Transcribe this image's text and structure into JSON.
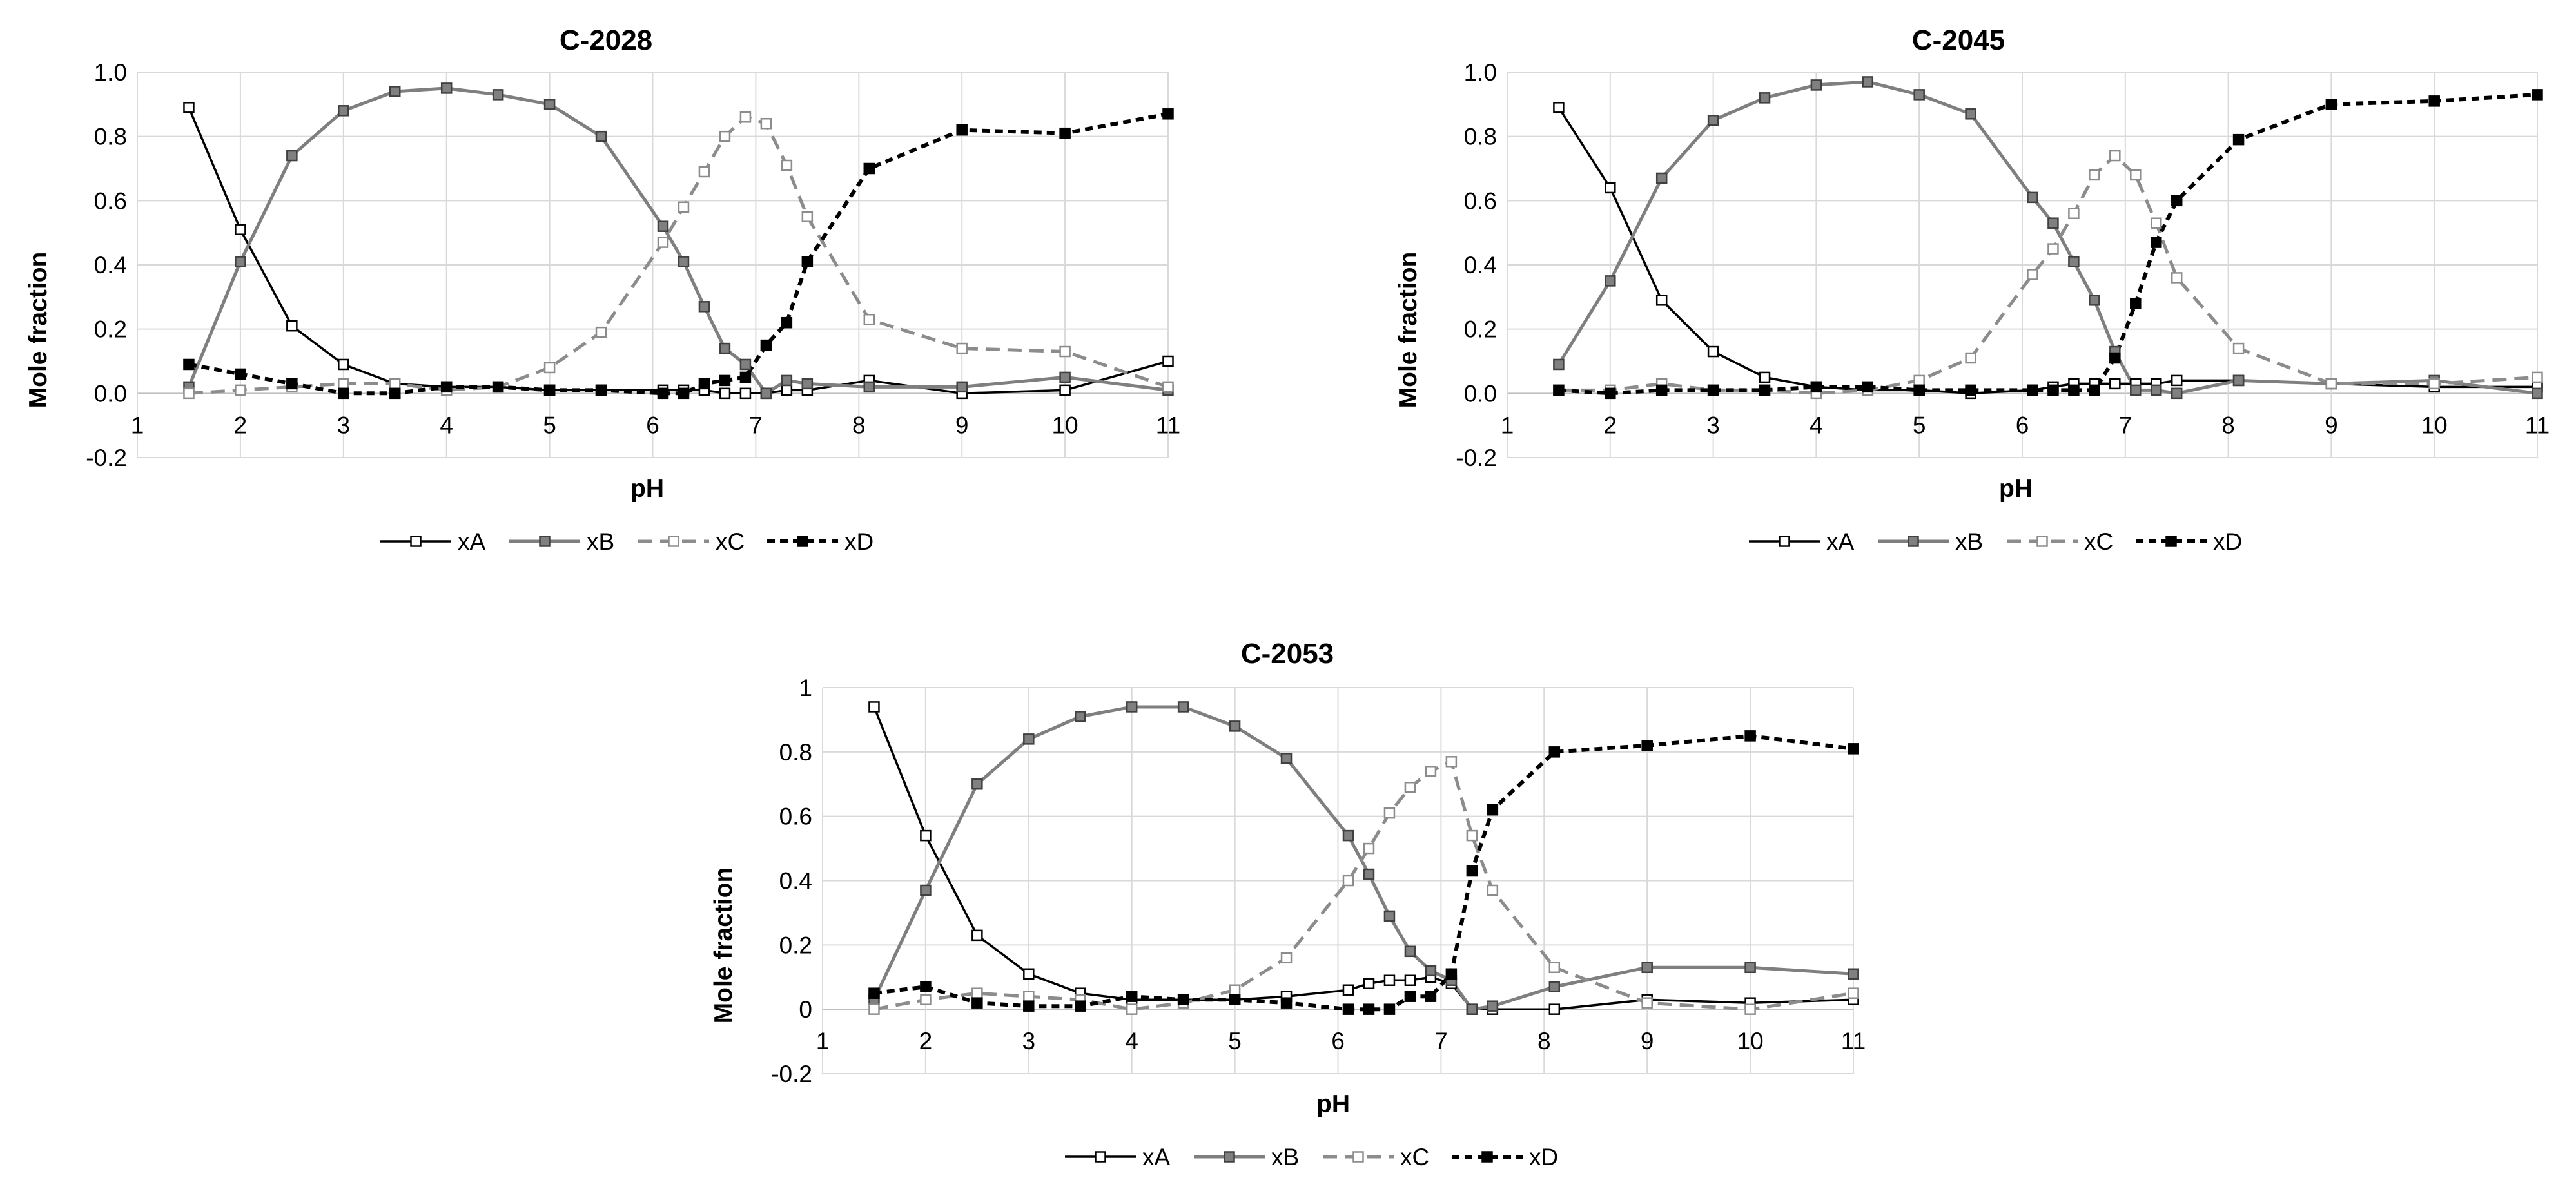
{
  "colors": {
    "xA": "#000000",
    "xB": "#7f7f7f",
    "xC": "#8c8c8c",
    "xD": "#000000",
    "grid": "#d9d9d9"
  },
  "chart_data": [
    {
      "type": "line",
      "title": "C-2028",
      "xlabel": "pH",
      "ylabel": "Mole fraction",
      "xlim": [
        1,
        11
      ],
      "ylim": [
        -0.2,
        1.0
      ],
      "xticks": [
        1,
        2,
        3,
        4,
        5,
        6,
        7,
        8,
        9,
        10,
        11
      ],
      "xtick_labels": [
        "1",
        "2",
        "3",
        "4",
        "5",
        "6",
        "7",
        "8",
        "9",
        "10",
        "11"
      ],
      "yticks": [
        -0.2,
        0,
        0.2,
        0.4,
        0.6,
        0.8,
        1.0
      ],
      "ytick_labels": [
        "-0.2",
        "0.0",
        "0.2",
        "0.4",
        "0.6",
        "0.8",
        "1.0"
      ],
      "grid": true,
      "legend_position": "bottom",
      "series": [
        {
          "name": "xA",
          "x": [
            1.5,
            2,
            2.5,
            3,
            3.5,
            4,
            4.5,
            5,
            5.5,
            6.1,
            6.3,
            6.5,
            6.7,
            6.9,
            7.1,
            7.3,
            7.5,
            8.1,
            9,
            10,
            11
          ],
          "values": [
            0.89,
            0.51,
            0.21,
            0.09,
            0.03,
            0.02,
            0.02,
            0.01,
            0.01,
            0.01,
            0.01,
            0.01,
            0.0,
            0.0,
            0.0,
            0.01,
            0.01,
            0.04,
            0.0,
            0.01,
            0.1
          ]
        },
        {
          "name": "xB",
          "x": [
            1.5,
            2,
            2.5,
            3,
            3.5,
            4,
            4.5,
            5,
            5.5,
            6.1,
            6.3,
            6.5,
            6.7,
            6.9,
            7.1,
            7.3,
            7.5,
            8.1,
            9,
            10,
            11
          ],
          "values": [
            0.02,
            0.41,
            0.74,
            0.88,
            0.94,
            0.95,
            0.93,
            0.9,
            0.8,
            0.52,
            0.41,
            0.27,
            0.14,
            0.09,
            0.0,
            0.04,
            0.03,
            0.02,
            0.02,
            0.05,
            0.01
          ]
        },
        {
          "name": "xC",
          "x": [
            1.5,
            2,
            2.5,
            3,
            3.5,
            4,
            4.5,
            5,
            5.5,
            6.1,
            6.3,
            6.5,
            6.7,
            6.9,
            7.1,
            7.3,
            7.5,
            8.1,
            9,
            10,
            11
          ],
          "values": [
            0.0,
            0.01,
            0.02,
            0.03,
            0.03,
            0.01,
            0.02,
            0.08,
            0.19,
            0.47,
            0.58,
            0.69,
            0.8,
            0.86,
            0.84,
            0.71,
            0.55,
            0.23,
            0.14,
            0.13,
            0.02
          ]
        },
        {
          "name": "xD",
          "x": [
            1.5,
            2,
            2.5,
            3,
            3.5,
            4,
            4.5,
            5,
            5.5,
            6.1,
            6.3,
            6.5,
            6.7,
            6.9,
            7.1,
            7.3,
            7.5,
            8.1,
            9,
            10,
            11
          ],
          "values": [
            0.09,
            0.06,
            0.03,
            0.0,
            0.0,
            0.02,
            0.02,
            0.01,
            0.01,
            0.0,
            0.0,
            0.03,
            0.04,
            0.05,
            0.15,
            0.22,
            0.41,
            0.7,
            0.82,
            0.81,
            0.87
          ]
        }
      ]
    },
    {
      "type": "line",
      "title": "C-2045",
      "xlabel": "pH",
      "ylabel": "Mole fraction",
      "xlim": [
        1,
        11
      ],
      "ylim": [
        -0.2,
        1.0
      ],
      "xticks": [
        1,
        2,
        3,
        4,
        5,
        6,
        7,
        8,
        9,
        10,
        11
      ],
      "xtick_labels": [
        "1",
        "2",
        "3",
        "4",
        "5",
        "6",
        "7",
        "8",
        "9",
        "10",
        "11"
      ],
      "yticks": [
        -0.2,
        0,
        0.2,
        0.4,
        0.6,
        0.8,
        1.0
      ],
      "ytick_labels": [
        "-0.2",
        "0.0",
        "0.2",
        "0.4",
        "0.6",
        "0.8",
        "1.0"
      ],
      "grid": true,
      "legend_position": "bottom",
      "series": [
        {
          "name": "xA",
          "x": [
            1.5,
            2,
            2.5,
            3,
            3.5,
            4,
            4.5,
            5,
            5.5,
            6.1,
            6.3,
            6.5,
            6.7,
            6.9,
            7.1,
            7.3,
            7.5,
            8.1,
            9,
            10,
            11
          ],
          "values": [
            0.89,
            0.64,
            0.29,
            0.13,
            0.05,
            0.02,
            0.01,
            0.01,
            0.0,
            0.01,
            0.02,
            0.03,
            0.03,
            0.03,
            0.03,
            0.03,
            0.04,
            0.04,
            0.03,
            0.02,
            0.02
          ]
        },
        {
          "name": "xB",
          "x": [
            1.5,
            2,
            2.5,
            3,
            3.5,
            4,
            4.5,
            5,
            5.5,
            6.1,
            6.3,
            6.5,
            6.7,
            6.9,
            7.1,
            7.3,
            7.5,
            8.1,
            9,
            10,
            11
          ],
          "values": [
            0.09,
            0.35,
            0.67,
            0.85,
            0.92,
            0.96,
            0.97,
            0.93,
            0.87,
            0.61,
            0.53,
            0.41,
            0.29,
            0.13,
            0.01,
            0.01,
            0.0,
            0.04,
            0.03,
            0.04,
            0.0
          ]
        },
        {
          "name": "xC",
          "x": [
            1.5,
            2,
            2.5,
            3,
            3.5,
            4,
            4.5,
            5,
            5.5,
            6.1,
            6.3,
            6.5,
            6.7,
            6.9,
            7.1,
            7.3,
            7.5,
            8.1,
            9,
            10,
            11
          ],
          "values": [
            0.01,
            0.01,
            0.03,
            0.01,
            0.01,
            0.0,
            0.01,
            0.04,
            0.11,
            0.37,
            0.45,
            0.56,
            0.68,
            0.74,
            0.68,
            0.53,
            0.36,
            0.14,
            0.03,
            0.03,
            0.05
          ]
        },
        {
          "name": "xD",
          "x": [
            1.5,
            2,
            2.5,
            3,
            3.5,
            4,
            4.5,
            5,
            5.5,
            6.1,
            6.3,
            6.5,
            6.7,
            6.9,
            7.1,
            7.3,
            7.5,
            8.1,
            9,
            10,
            11
          ],
          "values": [
            0.01,
            0.0,
            0.01,
            0.01,
            0.01,
            0.02,
            0.02,
            0.01,
            0.01,
            0.01,
            0.01,
            0.01,
            0.01,
            0.11,
            0.28,
            0.47,
            0.6,
            0.79,
            0.9,
            0.91,
            0.93
          ]
        }
      ]
    },
    {
      "type": "line",
      "title": "C-2053",
      "xlabel": "pH",
      "ylabel": "Mole fraction",
      "xlim": [
        1,
        11
      ],
      "ylim": [
        -0.2,
        1.0
      ],
      "xticks": [
        1,
        2,
        3,
        4,
        5,
        6,
        7,
        8,
        9,
        10,
        11
      ],
      "xtick_labels": [
        "1",
        "2",
        "3",
        "4",
        "5",
        "6",
        "7",
        "8",
        "9",
        "10",
        "11"
      ],
      "yticks": [
        -0.2,
        0,
        0.2,
        0.4,
        0.6,
        0.8,
        1.0
      ],
      "ytick_labels": [
        "-0.2",
        "0",
        "0.2",
        "0.4",
        "0.6",
        "0.8",
        "1"
      ],
      "grid": true,
      "legend_position": "bottom",
      "series": [
        {
          "name": "xA",
          "x": [
            1.5,
            2,
            2.5,
            3,
            3.5,
            4,
            4.5,
            5,
            5.5,
            6.1,
            6.3,
            6.5,
            6.7,
            6.9,
            7.1,
            7.3,
            7.5,
            8.1,
            9,
            10,
            11
          ],
          "values": [
            0.94,
            0.54,
            0.23,
            0.11,
            0.05,
            0.03,
            0.03,
            0.03,
            0.04,
            0.06,
            0.08,
            0.09,
            0.09,
            0.1,
            0.08,
            0.0,
            0.0,
            0.0,
            0.03,
            0.02,
            0.03
          ]
        },
        {
          "name": "xB",
          "x": [
            1.5,
            2,
            2.5,
            3,
            3.5,
            4,
            4.5,
            5,
            5.5,
            6.1,
            6.3,
            6.5,
            6.7,
            6.9,
            7.1,
            7.3,
            7.5,
            8.1,
            9,
            10,
            11
          ],
          "values": [
            0.03,
            0.37,
            0.7,
            0.84,
            0.91,
            0.94,
            0.94,
            0.88,
            0.78,
            0.54,
            0.42,
            0.29,
            0.18,
            0.12,
            0.09,
            0.0,
            0.01,
            0.07,
            0.13,
            0.13,
            0.11
          ]
        },
        {
          "name": "xC",
          "x": [
            1.5,
            2,
            2.5,
            3,
            3.5,
            4,
            4.5,
            5,
            5.5,
            6.1,
            6.3,
            6.5,
            6.7,
            6.9,
            7.1,
            7.3,
            7.5,
            8.1,
            9,
            10,
            11
          ],
          "values": [
            0.0,
            0.03,
            0.05,
            0.04,
            0.03,
            0.0,
            0.02,
            0.06,
            0.16,
            0.4,
            0.5,
            0.61,
            0.69,
            0.74,
            0.77,
            0.54,
            0.37,
            0.13,
            0.02,
            0.0,
            0.05
          ]
        },
        {
          "name": "xD",
          "x": [
            1.5,
            2,
            2.5,
            3,
            3.5,
            4,
            4.5,
            5,
            5.5,
            6.1,
            6.3,
            6.5,
            6.7,
            6.9,
            7.1,
            7.3,
            7.5,
            8.1,
            9,
            10,
            11
          ],
          "values": [
            0.05,
            0.07,
            0.02,
            0.01,
            0.01,
            0.04,
            0.03,
            0.03,
            0.02,
            0.0,
            0.0,
            0.0,
            0.04,
            0.04,
            0.11,
            0.43,
            0.62,
            0.8,
            0.82,
            0.85,
            0.81
          ]
        }
      ]
    }
  ]
}
